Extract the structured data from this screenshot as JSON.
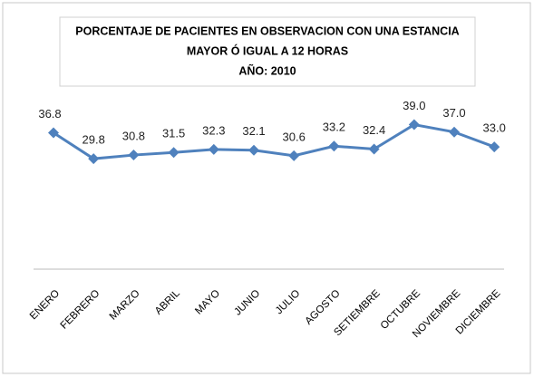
{
  "chart_data": {
    "type": "line",
    "title": [
      "PORCENTAJE DE PACIENTES EN OBSERVACION CON UNA ESTANCIA",
      "MAYOR Ó IGUAL A 12 HORAS",
      "AÑO: 2010"
    ],
    "categories": [
      "ENERO",
      "FEBRERO",
      "MARZO",
      "ABRIL",
      "MAYO",
      "JUNIO",
      "JULIO",
      "AGOSTO",
      "SETIEMBRE",
      "OCTUBRE",
      "NOVIEMBRE",
      "DICIEMBRE"
    ],
    "values": [
      36.8,
      29.8,
      30.8,
      31.5,
      32.3,
      32.1,
      30.6,
      33.2,
      32.4,
      39,
      37,
      33
    ],
    "value_labels": [
      "36.8",
      "29.8",
      "30.8",
      "31.5",
      "32.3",
      "32.1",
      "30.6",
      "33.2",
      "32.4",
      "39.0",
      "37.0",
      "33.0"
    ],
    "color": "#4f81bd",
    "ylim": [
      0,
      45
    ]
  }
}
